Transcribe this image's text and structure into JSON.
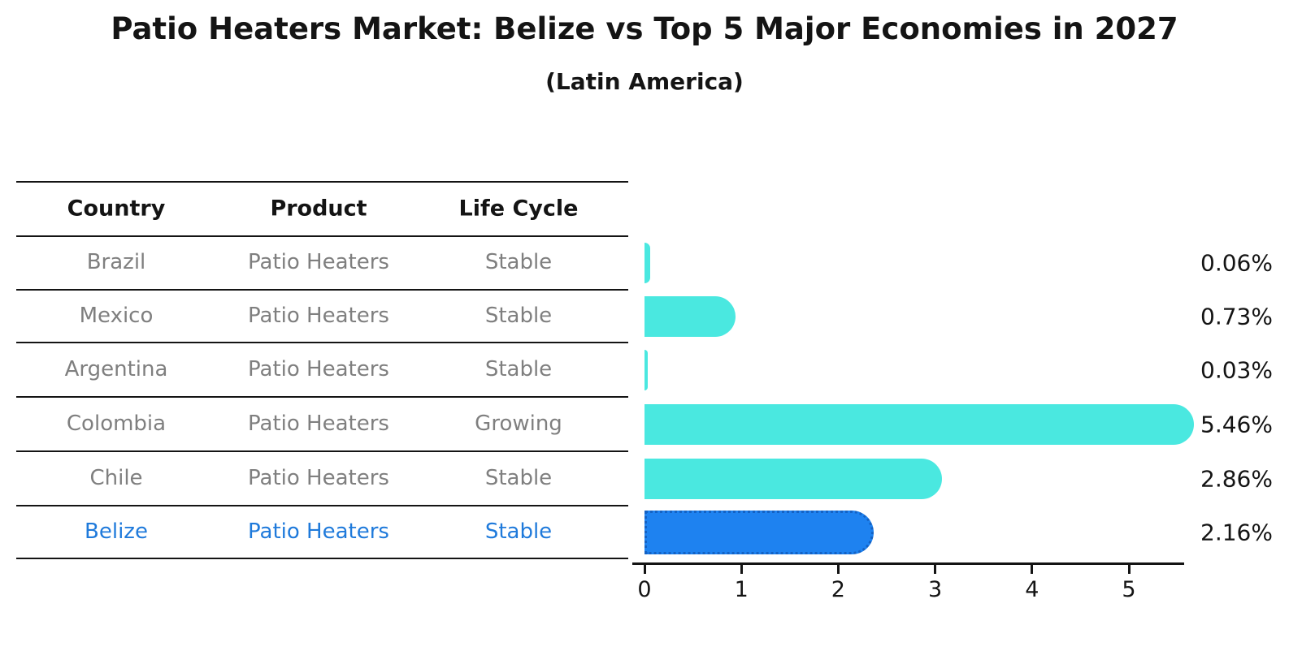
{
  "title": "Patio Heaters Market: Belize vs Top 5 Major Economies in 2027",
  "subtitle": "(Latin America)",
  "table": {
    "headers": [
      "Country",
      "Product",
      "Life Cycle"
    ],
    "rows": [
      {
        "country": "Brazil",
        "product": "Patio Heaters",
        "life_cycle": "Stable",
        "highlighted": false
      },
      {
        "country": "Mexico",
        "product": "Patio Heaters",
        "life_cycle": "Stable",
        "highlighted": false
      },
      {
        "country": "Argentina",
        "product": "Patio Heaters",
        "life_cycle": "Stable",
        "highlighted": false
      },
      {
        "country": "Colombia",
        "product": "Patio Heaters",
        "life_cycle": "Growing",
        "highlighted": false
      },
      {
        "country": "Chile",
        "product": "Patio Heaters",
        "life_cycle": "Stable",
        "highlighted": false
      },
      {
        "country": "Belize",
        "product": "Patio Heaters",
        "life_cycle": "Stable",
        "highlighted": true
      }
    ]
  },
  "chart_data": {
    "type": "bar",
    "orientation": "horizontal",
    "title": "Patio Heaters Market: Belize vs Top 5 Major Economies in 2027",
    "subtitle": "(Latin America)",
    "categories": [
      "Brazil",
      "Mexico",
      "Argentina",
      "Colombia",
      "Chile",
      "Belize"
    ],
    "values": [
      0.06,
      0.73,
      0.03,
      5.46,
      2.86,
      2.16
    ],
    "value_labels": [
      "0.06%",
      "0.73%",
      "0.03%",
      "5.46%",
      "2.86%",
      "2.16%"
    ],
    "xlabel": "",
    "ylabel": "",
    "xlim": [
      0,
      5.7
    ],
    "x_ticks": [
      "0",
      "1",
      "2",
      "3",
      "4",
      "5"
    ],
    "grid": false,
    "legend": "none",
    "highlight_category": "Belize"
  },
  "colors": {
    "bar_default": "#4AE8E0",
    "bar_highlight": "#1E82F0",
    "bar_highlight_border": "#1462C4",
    "highlight_text": "#1F7ADB",
    "table_text": "#7F7F7F",
    "text": "#141414"
  }
}
